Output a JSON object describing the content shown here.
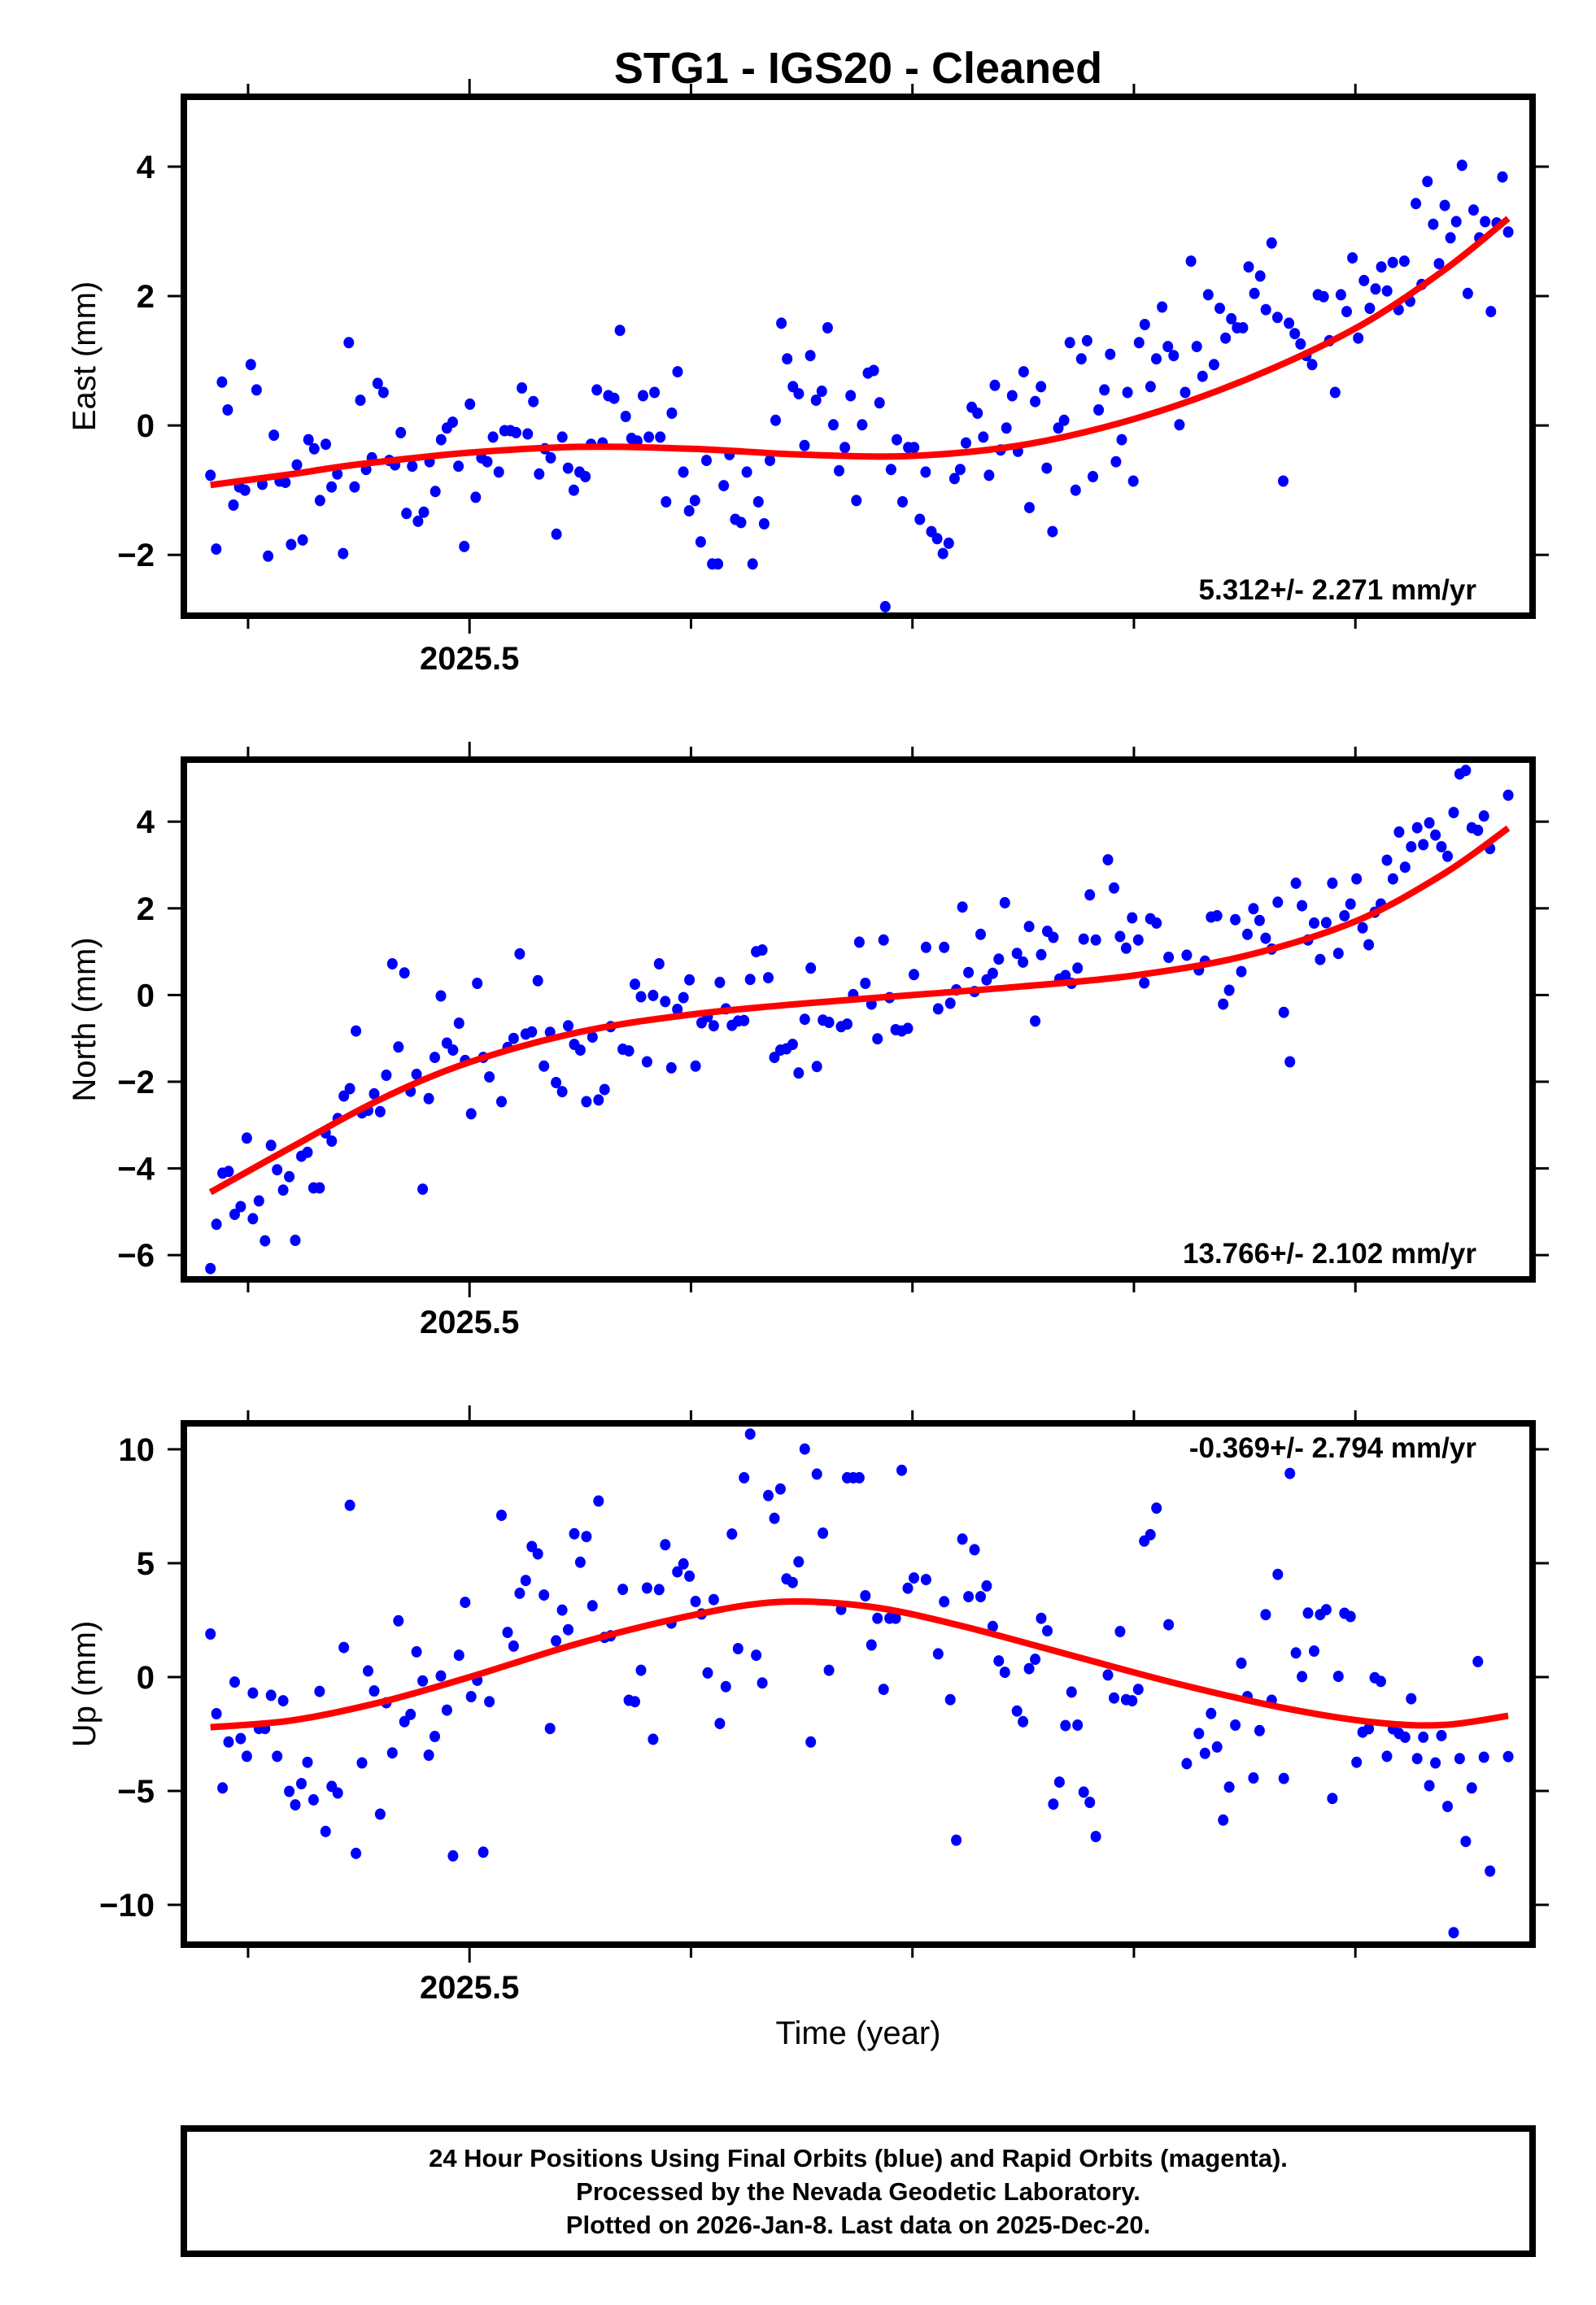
{
  "chart_data": {
    "type": "scatter",
    "title": "STG1  - IGS20 - Cleaned",
    "xlabel": "Time (year)",
    "xlim": [
      2025.371,
      2025.98
    ],
    "x_ticks": [
      2025.4,
      2025.5,
      2025.6,
      2025.7,
      2025.8,
      2025.9
    ],
    "x_tick_labels": [
      {
        "value": 2025.5,
        "label": "2025.5"
      }
    ],
    "grid": false,
    "marker_color": "#0000ff",
    "fit_color": "#ff0000",
    "panels": [
      {
        "id": "east",
        "ylabel": "East (mm)",
        "ylim": [
          -2.94,
          5.08
        ],
        "y_ticks": [
          -2,
          0,
          2,
          4
        ],
        "y_tick_labels": [
          "−2",
          "0",
          "2",
          "4"
        ],
        "rate_label": "5.312+/- 2.271 mm/yr",
        "rate_position": "bottom-right",
        "t_start": 2025.383,
        "t_end": 2025.969,
        "values": [
          -0.77,
          -1.91,
          0.67,
          0.24,
          -1.23,
          -0.95,
          -1.0,
          0.94,
          0.55,
          -0.91,
          -2.02,
          -0.15,
          -0.86,
          -0.88,
          -1.84,
          -0.61,
          -1.77,
          -0.22,
          -0.36,
          -1.16,
          -0.29,
          -0.95,
          -0.75,
          -1.98,
          1.28,
          -0.95,
          0.39,
          -0.68,
          -0.5,
          0.65,
          0.51,
          -0.54,
          -0.61,
          -0.11,
          -1.36,
          -0.63,
          -1.48,
          -1.34,
          -0.56,
          -1.02,
          -0.22,
          -0.04,
          0.05,
          -0.63,
          -1.87,
          0.33,
          -1.11,
          -0.5,
          -0.56,
          -0.18,
          -0.72,
          -0.08,
          -0.08,
          -0.11,
          0.58,
          -0.13,
          0.37,
          -0.75,
          -0.36,
          -0.5,
          -1.68,
          -0.18,
          -0.66,
          -1.0,
          -0.72,
          -0.79,
          -0.29,
          0.55,
          -0.27,
          0.46,
          0.42,
          1.47,
          0.14,
          -0.2,
          -0.24,
          0.46,
          -0.18,
          0.51,
          -0.18,
          -1.18,
          0.19,
          0.83,
          -0.72,
          -1.32,
          -1.16,
          -1.8,
          -0.54,
          -2.14,
          -2.14,
          -0.93,
          -0.45,
          -1.45,
          -1.5,
          -0.72,
          -2.14,
          -1.18,
          -1.52,
          -0.54,
          0.08,
          1.58,
          1.03,
          0.6,
          0.49,
          -0.31,
          1.08,
          0.39,
          0.53,
          1.51,
          0.01,
          -0.7,
          -0.34,
          0.46,
          -1.16,
          0.01,
          0.81,
          0.85,
          0.35,
          -2.8,
          -0.68,
          -0.22,
          -1.18,
          -0.34,
          -0.34,
          -1.45,
          -0.72,
          -1.64,
          -1.75,
          -1.98,
          -1.82,
          -0.82,
          -0.68,
          -0.27,
          0.28,
          0.19,
          -0.18,
          -0.77,
          0.62,
          -0.38,
          -0.04,
          0.46,
          -0.4,
          0.83,
          -1.27,
          0.37,
          0.6,
          -0.66,
          -1.64,
          -0.04,
          0.08,
          1.28,
          -1.0,
          1.03,
          1.31,
          -0.79,
          0.24,
          0.55,
          1.1,
          -0.56,
          -0.22,
          0.51,
          -0.86,
          1.28,
          1.56,
          0.6,
          1.03,
          1.83,
          1.22,
          1.08,
          0.01,
          0.51,
          2.54,
          1.22,
          0.76,
          2.02,
          0.94,
          1.81,
          1.35,
          1.65,
          1.51,
          1.51,
          2.45,
          2.04,
          2.31,
          1.79,
          2.82,
          1.67,
          -0.86,
          1.58,
          1.42,
          1.26,
          1.08,
          0.94,
          2.02,
          1.99,
          1.31,
          0.51,
          2.02,
          1.76,
          2.59,
          1.35,
          2.24,
          1.81,
          2.11,
          2.45,
          2.08,
          2.52,
          1.79,
          2.54,
          1.92,
          3.43,
          2.18,
          3.77,
          3.11,
          2.5,
          3.4,
          2.9,
          3.15,
          4.02,
          2.04,
          3.33,
          2.9,
          3.15,
          1.76,
          3.13,
          3.84,
          2.99
        ],
        "fit": [
          [
            2025.383,
            -0.92
          ],
          [
            2025.42,
            -0.75
          ],
          [
            2025.45,
            -0.6
          ],
          [
            2025.5,
            -0.42
          ],
          [
            2025.55,
            -0.33
          ],
          [
            2025.6,
            -0.36
          ],
          [
            2025.65,
            -0.45
          ],
          [
            2025.7,
            -0.47
          ],
          [
            2025.75,
            -0.3
          ],
          [
            2025.8,
            0.1
          ],
          [
            2025.85,
            0.7
          ],
          [
            2025.9,
            1.5
          ],
          [
            2025.94,
            2.4
          ],
          [
            2025.969,
            3.2
          ]
        ]
      },
      {
        "id": "north",
        "ylabel": "North (mm)",
        "ylim": [
          -6.56,
          5.43
        ],
        "y_ticks": [
          -6,
          -4,
          -2,
          0,
          2,
          4
        ],
        "y_tick_labels": [
          "−6",
          "−4",
          "−2",
          "0",
          "2",
          "4"
        ],
        "rate_label": "13.766+/- 2.102 mm/yr",
        "rate_position": "bottom-right",
        "t_start": 2025.383,
        "t_end": 2025.969,
        "values": [
          -6.31,
          -5.29,
          -4.11,
          -4.07,
          -5.06,
          -4.88,
          -3.3,
          -5.16,
          -4.75,
          -5.67,
          -3.47,
          -4.03,
          -4.5,
          -4.19,
          -5.66,
          -3.72,
          -3.63,
          -4.45,
          -4.45,
          -3.18,
          -3.37,
          -2.85,
          -2.33,
          -2.16,
          -0.83,
          -2.72,
          -2.66,
          -2.28,
          -2.69,
          -1.85,
          0.72,
          -1.2,
          0.51,
          -2.22,
          -1.83,
          -4.48,
          -2.39,
          -1.44,
          -0.02,
          -1.11,
          -1.27,
          -0.65,
          -1.51,
          -2.74,
          0.27,
          -1.44,
          -1.89,
          null,
          -2.46,
          -1.21,
          -1.0,
          0.95,
          -0.9,
          -0.85,
          0.33,
          -1.64,
          -0.86,
          -2.02,
          -2.23,
          -0.71,
          -1.14,
          -1.27,
          -2.46,
          -0.97,
          -2.42,
          -2.18,
          -0.73,
          null,
          -1.25,
          -1.29,
          0.25,
          -0.04,
          -1.54,
          -0.01,
          0.72,
          -0.15,
          -1.68,
          -0.33,
          -0.06,
          0.35,
          -1.64,
          -0.64,
          -0.5,
          -0.71,
          0.29,
          -0.32,
          -0.7,
          -0.6,
          -0.59,
          0.36,
          1.0,
          1.04,
          0.4,
          -1.44,
          -1.27,
          -1.24,
          -1.14,
          -1.8,
          -0.56,
          0.62,
          -1.65,
          -0.58,
          -0.63,
          null,
          -0.73,
          -0.67,
          0.01,
          1.22,
          0.27,
          -0.21,
          -1.01,
          1.27,
          -0.06,
          -0.8,
          -0.83,
          -0.77,
          0.47,
          null,
          1.1,
          null,
          -0.32,
          1.1,
          -0.19,
          0.12,
          2.03,
          0.52,
          0.08,
          1.4,
          0.35,
          0.5,
          0.83,
          2.13,
          null,
          0.96,
          0.76,
          1.58,
          -0.6,
          0.93,
          1.47,
          1.33,
          0.37,
          0.45,
          0.27,
          0.62,
          1.29,
          2.31,
          1.27,
          null,
          3.12,
          2.47,
          1.35,
          1.08,
          1.78,
          1.27,
          0.28,
          1.76,
          1.66,
          null,
          0.87,
          null,
          null,
          0.92,
          null,
          0.58,
          0.78,
          1.8,
          1.83,
          -0.21,
          0.11,
          1.74,
          0.54,
          1.4,
          1.99,
          1.72,
          1.31,
          1.06,
          2.14,
          -0.4,
          -1.54,
          2.58,
          2.06,
          1.27,
          1.66,
          0.82,
          1.67,
          2.58,
          0.96,
          1.83,
          2.1,
          2.68,
          1.55,
          1.16,
          1.91,
          2.1,
          3.11,
          2.68,
          3.76,
          2.95,
          3.42,
          3.86,
          3.47,
          3.97,
          3.69,
          3.42,
          3.2,
          4.21,
          5.1,
          5.18,
          3.86,
          3.8,
          4.13,
          3.38,
          null,
          null,
          4.61
        ],
        "fit": [
          [
            2025.383,
            -4.55
          ],
          [
            2025.42,
            -3.5
          ],
          [
            2025.46,
            -2.4
          ],
          [
            2025.5,
            -1.55
          ],
          [
            2025.55,
            -0.85
          ],
          [
            2025.6,
            -0.45
          ],
          [
            2025.65,
            -0.2
          ],
          [
            2025.7,
            0.0
          ],
          [
            2025.75,
            0.2
          ],
          [
            2025.8,
            0.45
          ],
          [
            2025.85,
            0.9
          ],
          [
            2025.9,
            1.7
          ],
          [
            2025.94,
            2.8
          ],
          [
            2025.969,
            3.85
          ]
        ]
      },
      {
        "id": "up",
        "ylabel": "Up (mm)",
        "ylim": [
          -11.75,
          11.14
        ],
        "y_ticks": [
          -10,
          -5,
          0,
          5,
          10
        ],
        "y_tick_labels": [
          "−10",
          "−5",
          "0",
          "5",
          "10"
        ],
        "rate_label": "-0.369+/- 2.794 mm/yr",
        "rate_position": "top-right",
        "t_start": 2025.383,
        "t_end": 2025.969,
        "values": [
          1.89,
          -1.61,
          -4.87,
          -2.85,
          -0.22,
          -2.7,
          -3.48,
          -0.7,
          -2.26,
          -2.26,
          -0.8,
          -3.48,
          -1.04,
          -5.02,
          -5.61,
          -4.68,
          -3.74,
          -5.39,
          -0.63,
          -6.78,
          -4.8,
          -5.09,
          1.3,
          7.54,
          -7.74,
          -3.77,
          0.27,
          -0.61,
          -6.02,
          -1.13,
          -3.33,
          2.47,
          -1.96,
          -1.64,
          1.11,
          -0.17,
          -3.43,
          -2.61,
          0.05,
          -1.45,
          -7.85,
          0.96,
          3.28,
          -0.86,
          -0.14,
          -7.69,
          -1.08,
          null,
          7.1,
          1.96,
          1.36,
          3.68,
          4.24,
          5.73,
          5.41,
          3.6,
          -2.26,
          1.59,
          2.94,
          2.08,
          6.29,
          5.04,
          6.17,
          3.13,
          7.73,
          1.74,
          1.81,
          null,
          3.85,
          -1.02,
          -1.08,
          0.3,
          3.91,
          -2.73,
          3.84,
          5.81,
          2.37,
          4.62,
          4.97,
          4.43,
          3.32,
          2.77,
          0.18,
          3.4,
          -2.04,
          -0.42,
          6.28,
          1.25,
          8.75,
          10.67,
          0.96,
          -0.26,
          7.97,
          6.97,
          8.26,
          4.31,
          4.15,
          5.06,
          10.01,
          -2.85,
          8.91,
          6.32,
          0.3,
          null,
          2.97,
          8.75,
          8.75,
          8.75,
          3.57,
          1.41,
          2.58,
          -0.54,
          2.58,
          2.58,
          9.08,
          3.9,
          4.35,
          null,
          4.28,
          null,
          1.02,
          3.31,
          -0.99,
          -7.16,
          6.06,
          3.53,
          5.59,
          3.53,
          4.0,
          2.22,
          0.71,
          0.21,
          null,
          -1.49,
          -1.96,
          0.37,
          0.78,
          2.58,
          2.03,
          -5.58,
          -4.61,
          -2.13,
          -0.66,
          -2.11,
          -5.05,
          -5.5,
          -7.0,
          null,
          0.09,
          -0.92,
          2.0,
          -0.99,
          -1.04,
          -0.54,
          5.97,
          6.25,
          7.42,
          null,
          2.3,
          null,
          null,
          -3.8,
          null,
          -2.48,
          -3.35,
          -1.6,
          -3.07,
          -6.28,
          -4.83,
          -2.11,
          0.61,
          -0.86,
          -4.43,
          -2.35,
          2.74,
          -1.02,
          4.51,
          -4.45,
          8.94,
          1.06,
          0.02,
          2.81,
          1.14,
          2.74,
          2.96,
          -5.33,
          0.03,
          2.8,
          2.66,
          -3.74,
          -2.42,
          -2.27,
          -0.03,
          -0.19,
          -3.48,
          -2.27,
          -2.48,
          -2.64,
          -0.95,
          -3.58,
          -2.64,
          -4.77,
          -3.77,
          -2.57,
          -5.68,
          -11.22,
          -3.58,
          -7.22,
          -4.87,
          0.68,
          -3.52,
          -8.52,
          null,
          null,
          -3.49
        ],
        "fit": [
          [
            2025.383,
            -2.2
          ],
          [
            2025.42,
            -1.9
          ],
          [
            2025.46,
            -1.1
          ],
          [
            2025.5,
            0.0
          ],
          [
            2025.55,
            1.5
          ],
          [
            2025.6,
            2.7
          ],
          [
            2025.64,
            3.3
          ],
          [
            2025.68,
            3.1
          ],
          [
            2025.72,
            2.3
          ],
          [
            2025.77,
            1.0
          ],
          [
            2025.82,
            -0.3
          ],
          [
            2025.87,
            -1.4
          ],
          [
            2025.91,
            -2.0
          ],
          [
            2025.94,
            -2.1
          ],
          [
            2025.969,
            -1.7
          ]
        ]
      }
    ]
  },
  "footer": {
    "lines": [
      "24 Hour Positions Using Final Orbits (blue) and Rapid Orbits (magenta).",
      "Processed by the Nevada Geodetic Laboratory.",
      "Plotted on 2026-Jan-8. Last data on 2025-Dec-20."
    ]
  }
}
